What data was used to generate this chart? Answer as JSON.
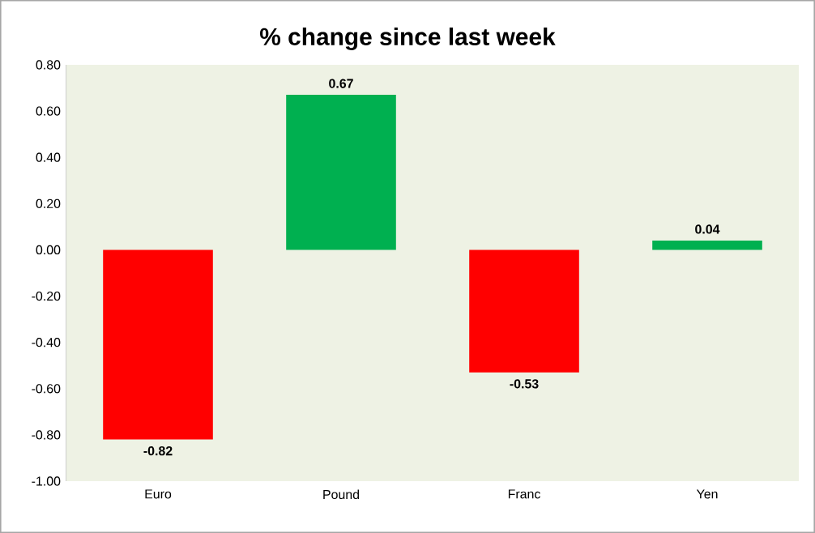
{
  "chart_data": {
    "type": "bar",
    "title": "% change since last week",
    "categories": [
      "Euro",
      "Pound",
      "Franc",
      "Yen"
    ],
    "values": [
      -0.82,
      0.67,
      -0.53,
      0.04
    ],
    "colors": [
      "#ff0000",
      "#00b050",
      "#ff0000",
      "#00b050"
    ],
    "ylim": [
      -1.0,
      0.8
    ],
    "yticks": [
      {
        "value": -1.0,
        "label": "-1.00"
      },
      {
        "value": -0.8,
        "label": "-0.80"
      },
      {
        "value": -0.6,
        "label": "-0.60"
      },
      {
        "value": -0.4,
        "label": "-0.40"
      },
      {
        "value": -0.2,
        "label": "-0.20"
      },
      {
        "value": 0,
        "label": "0.00"
      },
      {
        "value": 0.2,
        "label": "0.20"
      },
      {
        "value": 0.4,
        "label": "0.40"
      },
      {
        "value": 0.6,
        "label": "0.60"
      },
      {
        "value": 0.8,
        "label": "0.80"
      }
    ],
    "data_labels": true,
    "grid": false
  }
}
